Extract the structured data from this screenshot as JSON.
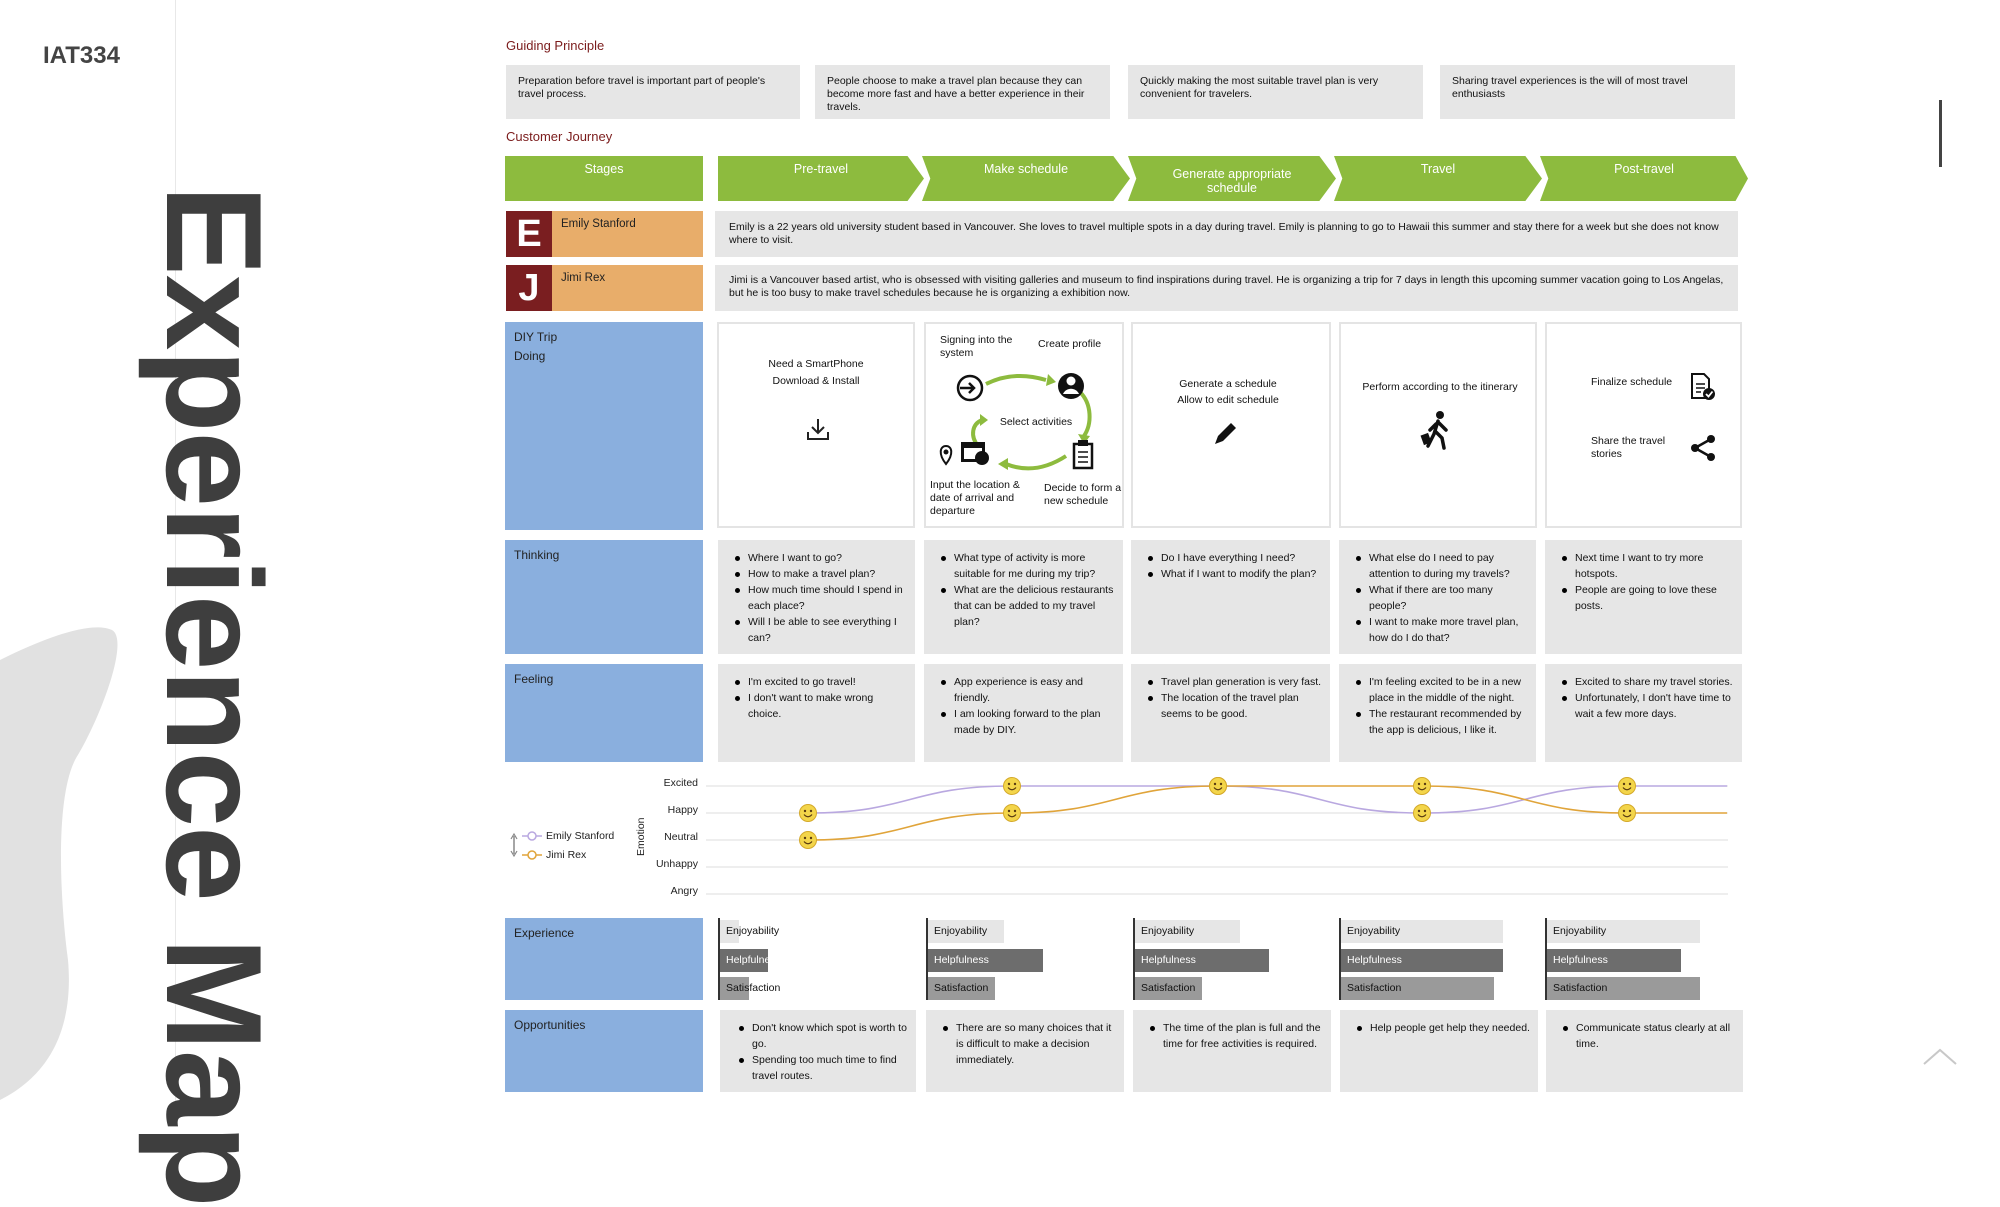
{
  "brand": "IAT334",
  "title": "Experience Map",
  "guiding": {
    "title": "Guiding Principle",
    "items": [
      "Preparation before travel is important part of people's travel process.",
      "People choose to make a travel plan because they can become more fast and have a better experience in their travels.",
      "Quickly making the most suitable travel plan is very convenient for travelers.",
      "Sharing travel experiences is the will of most travel enthusiasts"
    ]
  },
  "journey": {
    "title": "Customer Journey",
    "stages_label": "Stages",
    "stages": [
      "Pre-travel",
      "Make schedule",
      "Generate appropriate schedule",
      "Travel",
      "Post-travel"
    ],
    "personas": [
      {
        "initial": "E",
        "name": "Emily Stanford",
        "desc": "Emily is a 22 years old university student based in Vancouver. She loves to travel multiple spots in a day during travel. Emily is planning to go to Hawaii this summer and stay there for a week but she does not know where to visit."
      },
      {
        "initial": "J",
        "name": "Jimi Rex",
        "desc": "Jimi is a Vancouver based artist, who is obsessed with visiting galleries and museum to find inspirations during travel. He is organizing a trip for 7 days in length this upcoming summer vacation going to Los Angelas, but he is too busy to make travel schedules because he is organizing a exhibition now."
      }
    ]
  },
  "doing": {
    "label1": "DIY Trip",
    "label2": "Doing",
    "pretravel": [
      "Need a SmartPhone",
      "Download & Install"
    ],
    "make": {
      "signin": "Signing into the system",
      "create": "Create profile",
      "select": "Select activities",
      "input": "Input the location & date of arrival and departure",
      "decide": "Decide to form a new schedule"
    },
    "generate": [
      "Generate a schedule",
      "Allow to edit schedule"
    ],
    "travel": "Perform according to the itinerary",
    "post": {
      "finalize": "Finalize schedule",
      "share": "Share the travel stories"
    }
  },
  "thinking": {
    "label": "Thinking",
    "columns": [
      [
        "Where I want to go?",
        "How to make a travel plan?",
        "How much time should I spend in each place?",
        "Will I be able to see everything I can?"
      ],
      [
        "What type of activity is more suitable for me during my trip?",
        "What are the delicious restaurants that can be added to my travel plan?"
      ],
      [
        "Do I have everything I need?",
        "What if I want to modify the plan?"
      ],
      [
        "What else do I need to pay attention to during my travels?",
        "What if there are too many people?",
        "I want to make more travel plan, how do I do that?"
      ],
      [
        "Next time I want to try more hotspots.",
        "People are going to love these posts."
      ]
    ]
  },
  "feeling": {
    "label": "Feeling",
    "columns": [
      [
        "I'm excited to go travel!",
        "I don't want to make wrong choice."
      ],
      [
        "App experience is easy and friendly.",
        "I am looking forward to the plan made by DIY."
      ],
      [
        "Travel plan generation is very fast.",
        "The location of the travel plan seems to be good."
      ],
      [
        "I'm feeling excited to be in a new place in the middle of the night.",
        "The restaurant recommended by the app is delicious, I like it."
      ],
      [
        "Excited to share my travel stories.",
        "Unfortunately, I don't have time to wait a few more days."
      ]
    ]
  },
  "emotion": {
    "axis_label": "Emotion",
    "levels": [
      "Excited",
      "Happy",
      "Neutral",
      "Unhappy",
      "Angry"
    ],
    "legend": [
      "Emily Stanford",
      "Jimi Rex"
    ],
    "colors": {
      "emily": "#b9a8e0",
      "jimi": "#e0a43a",
      "face": "#f3d54a"
    },
    "emily": [
      "Happy",
      "Excited",
      "Excited",
      "Happy",
      "Excited"
    ],
    "jimi": [
      "Neutral",
      "Happy",
      "Excited",
      "Excited",
      "Happy"
    ]
  },
  "experience": {
    "label": "Experience",
    "bar_labels": [
      "Enjoyability",
      "Helpfulness",
      "Satisfaction"
    ],
    "columns": [
      {
        "enjoyability": 0.1,
        "helpfulness": 0.25,
        "satisfaction": 0.15
      },
      {
        "enjoyability": 0.4,
        "helpfulness": 0.6,
        "satisfaction": 0.35
      },
      {
        "enjoyability": 0.55,
        "helpfulness": 0.7,
        "satisfaction": 0.35
      },
      {
        "enjoyability": 0.85,
        "helpfulness": 0.85,
        "satisfaction": 0.8
      },
      {
        "enjoyability": 0.8,
        "helpfulness": 0.7,
        "satisfaction": 0.8
      }
    ]
  },
  "opportunities": {
    "label": "Opportunities",
    "columns": [
      [
        "Don't know which spot is worth to go.",
        "Spending too much time to find travel routes."
      ],
      [
        "There are so many choices that it is difficult to make a decision immediately."
      ],
      [
        "The time of the plan is full and the time for free activities is required."
      ],
      [
        "Help people get help they needed."
      ],
      [
        "Communicate status clearly at all time."
      ]
    ]
  }
}
